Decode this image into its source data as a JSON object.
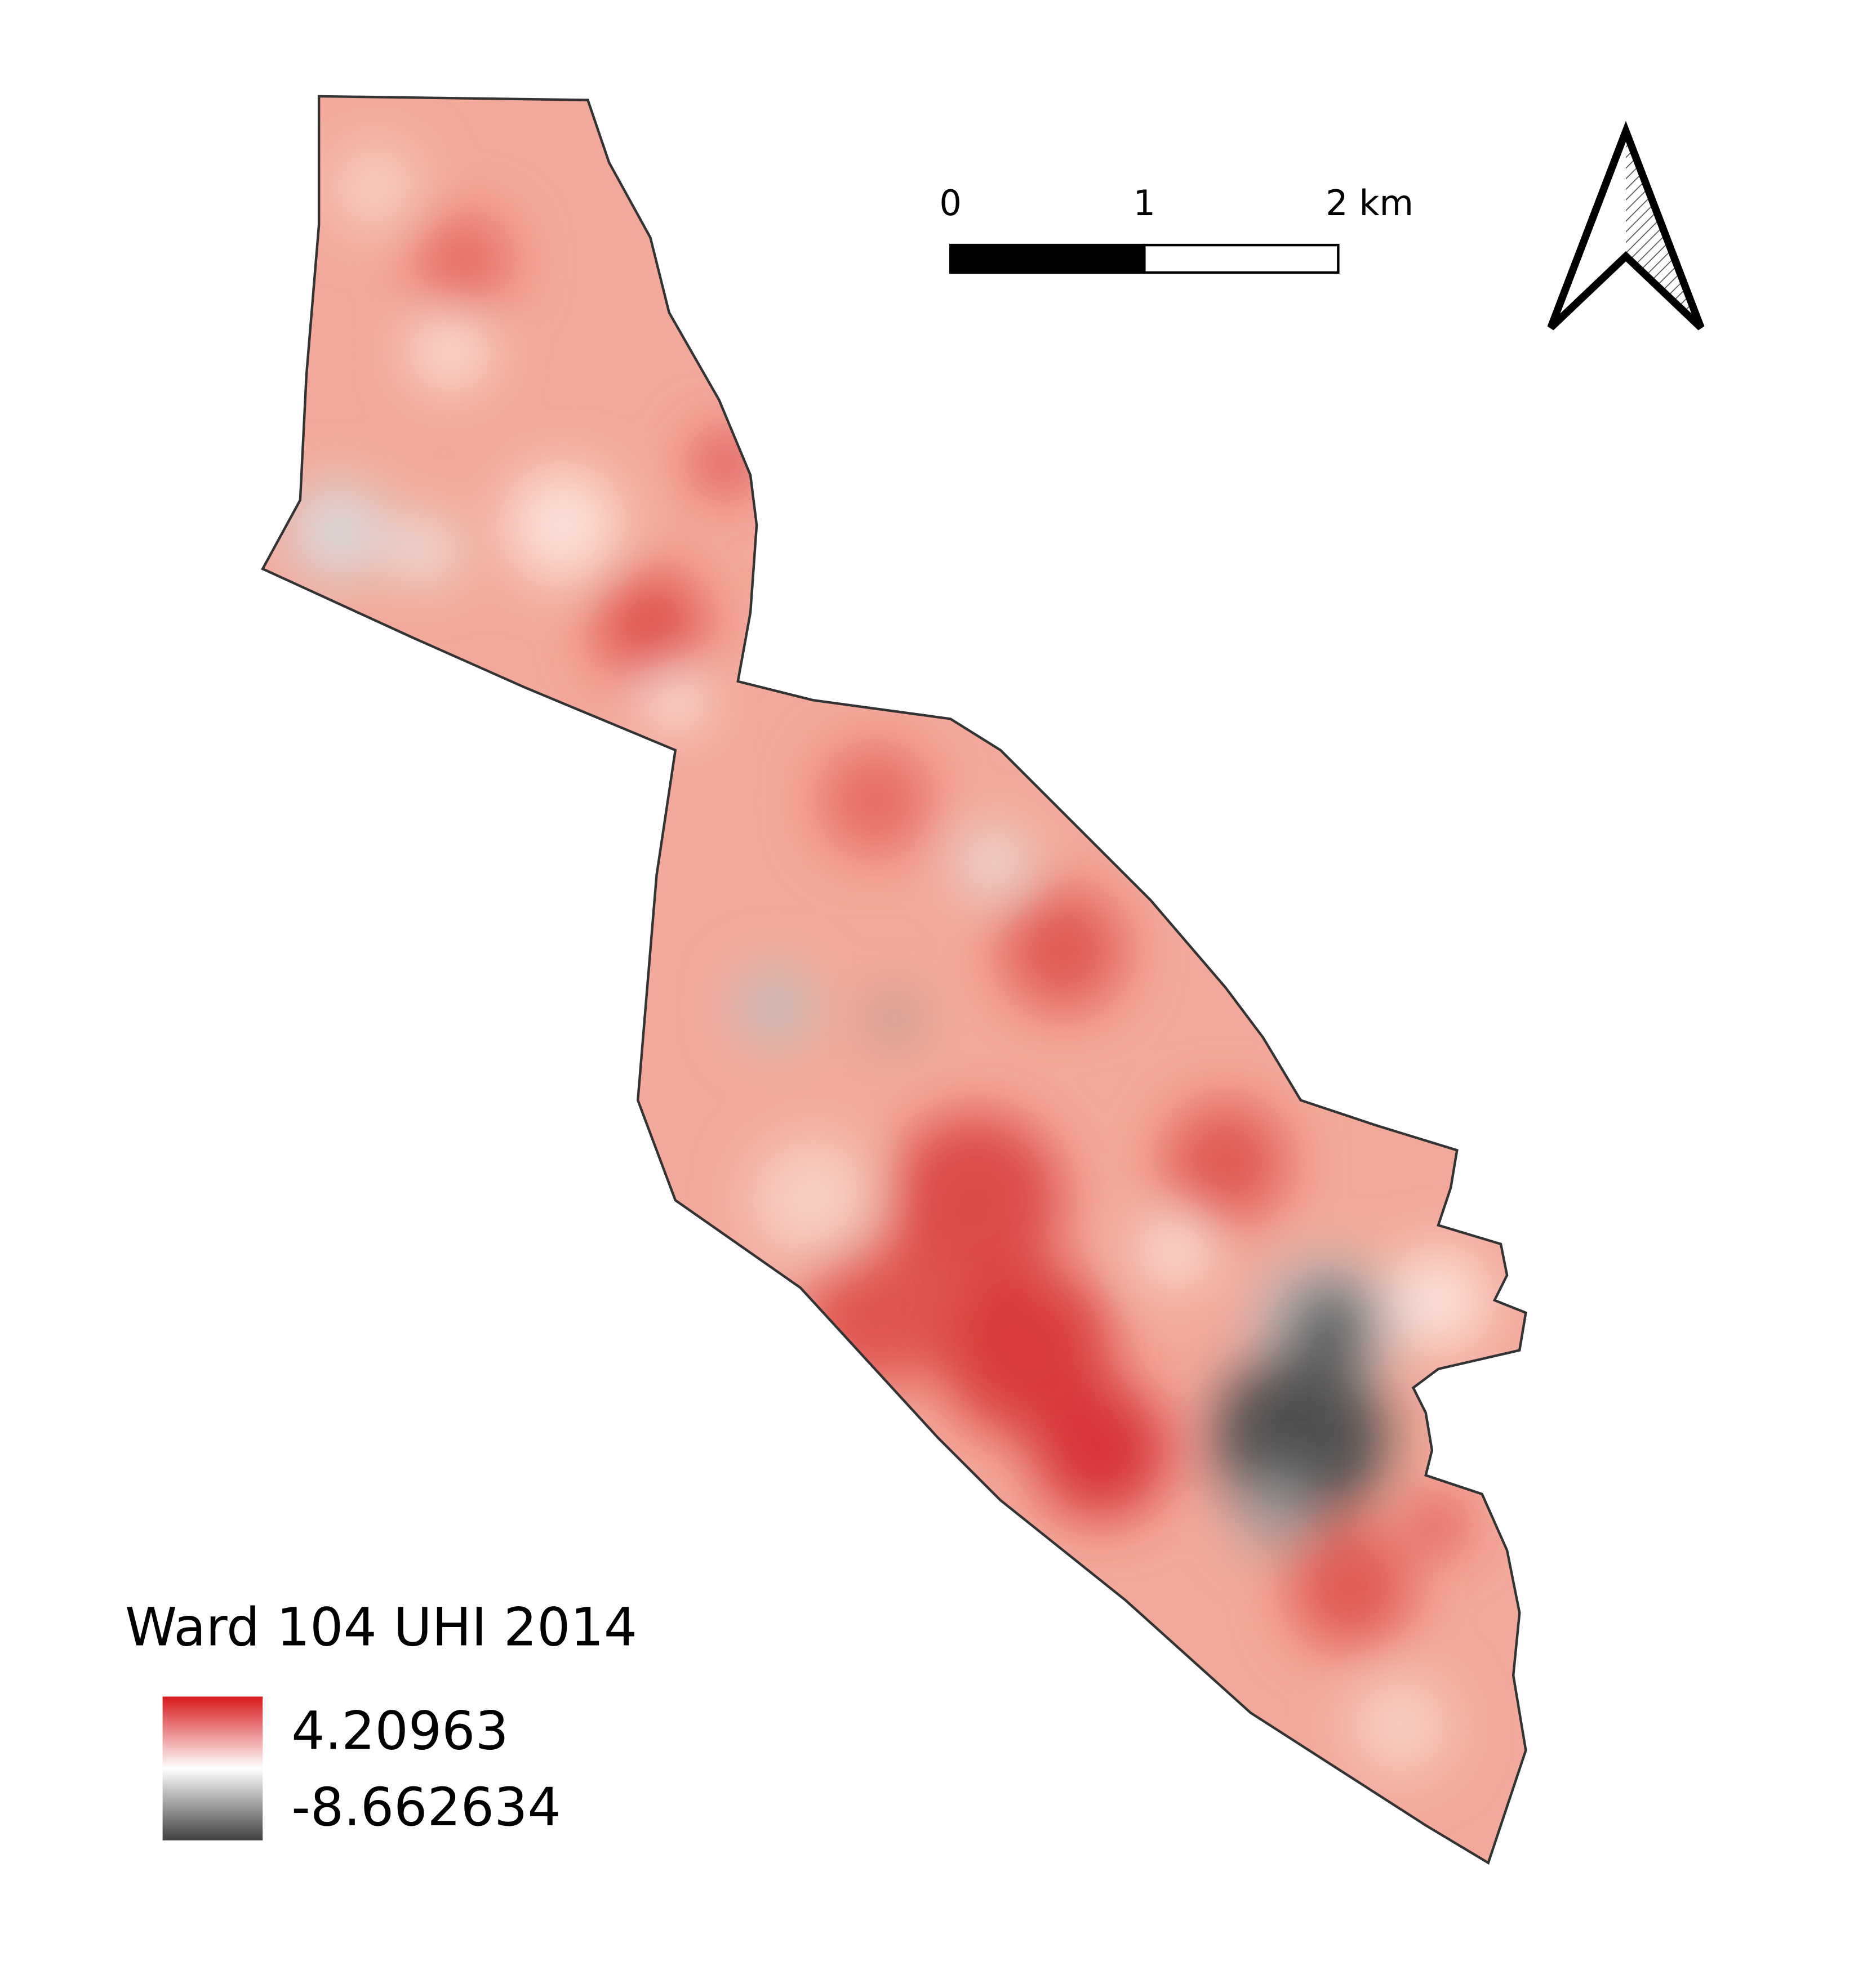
{
  "legend": {
    "title": "Ward 104 UHI 2014",
    "max_label": "4.20963",
    "min_label": "-8.662634"
  },
  "scale_bar": {
    "labels": [
      "0",
      "1",
      "2 km"
    ]
  }
}
